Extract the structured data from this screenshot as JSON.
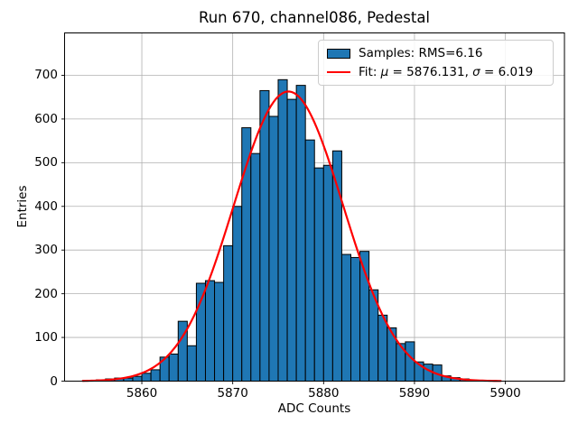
{
  "chart_data": {
    "type": "bar",
    "subtype": "histogram-with-gaussian-fit",
    "title": "Run 670, channel086, Pedestal",
    "xlabel": "ADC Counts",
    "ylabel": "Entries",
    "xlim": [
      5851.5,
      5906.5
    ],
    "ylim": [
      0,
      797
    ],
    "xticks": [
      5860,
      5870,
      5880,
      5890,
      5900
    ],
    "yticks": [
      0,
      100,
      200,
      300,
      400,
      500,
      600,
      700
    ],
    "grid": true,
    "legend_position": "upper-right",
    "bin_width": 1,
    "bin_start": 5854,
    "counts": [
      2,
      3,
      5,
      7,
      7,
      11,
      18,
      26,
      55,
      62,
      137,
      81,
      224,
      230,
      226,
      310,
      400,
      580,
      521,
      665,
      606,
      690,
      645,
      677,
      552,
      488,
      494,
      527,
      290,
      283,
      297,
      209,
      151,
      122,
      86,
      90,
      44,
      39,
      37,
      12,
      8,
      5
    ],
    "samples_rms": 6.16,
    "fit": {
      "mu": 5876.131,
      "sigma": 6.019,
      "amplitude": 663,
      "x_min": 5853.5,
      "x_max": 5899.5
    },
    "legend": {
      "samples_label": "Samples: RMS=6.16",
      "fit_prefix": "Fit: ",
      "mu_symbol": "μ",
      "mu_eq": " = 5876.131, ",
      "sigma_symbol": "σ",
      "sigma_eq": " = 6.019"
    },
    "colors": {
      "bar_fill": "#1f77b4",
      "bar_edge": "#000000",
      "fit_line": "#ff0000",
      "grid": "#b0b0b0",
      "spine": "#000000",
      "background": "#ffffff"
    }
  }
}
